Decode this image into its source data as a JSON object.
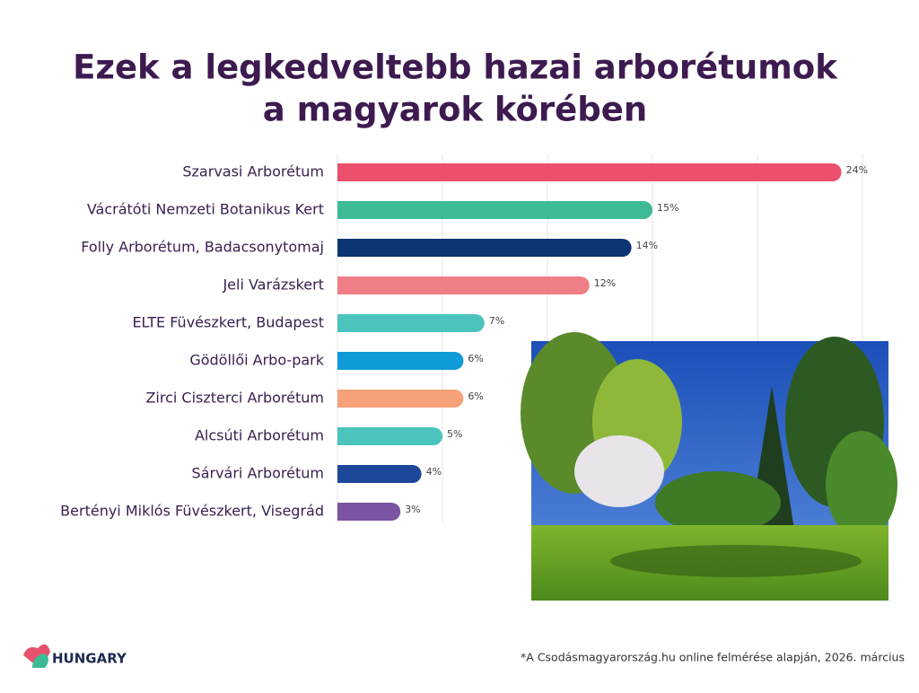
{
  "chart_data": {
    "type": "bar",
    "orientation": "horizontal",
    "title": [
      "Ezek a legkedveltebb hazai arborétumok",
      "a magyarok körében"
    ],
    "categories": [
      "Szarvasi Arborétum",
      "Vácrátóti Nemzeti Botanikus Kert",
      "Folly Arborétum, Badacsonytomaj",
      "Jeli Varázskert",
      "ELTE Füvészkert, Budapest",
      "Gödöllői Arbo-park",
      "Zirci Ciszterci Arborétum",
      "Alcsúti Arborétum",
      "Sárvári Arborétum",
      "Bertényi Miklós Füvészkert, Visegrád"
    ],
    "values": [
      24,
      15,
      14,
      12,
      7,
      6,
      6,
      5,
      4,
      3
    ],
    "value_labels": [
      "24%",
      "15%",
      "14%",
      "12%",
      "7%",
      "6%",
      "6%",
      "5%",
      "4%",
      "3%"
    ],
    "colors": [
      "#ea506c",
      "#3dba96",
      "#0b3574",
      "#f07e86",
      "#4bc4bd",
      "#0f9ad8",
      "#f6a177",
      "#4bc4bd",
      "#1d4798",
      "#7b54a3"
    ],
    "xlim": [
      0,
      25
    ],
    "xticks": [
      0,
      5,
      10,
      15,
      20,
      25
    ],
    "grid": true,
    "footnote": "*A Csodásmagyarország.hu online felmérése alapján, 2026. március",
    "logo": "HUNGARY"
  }
}
